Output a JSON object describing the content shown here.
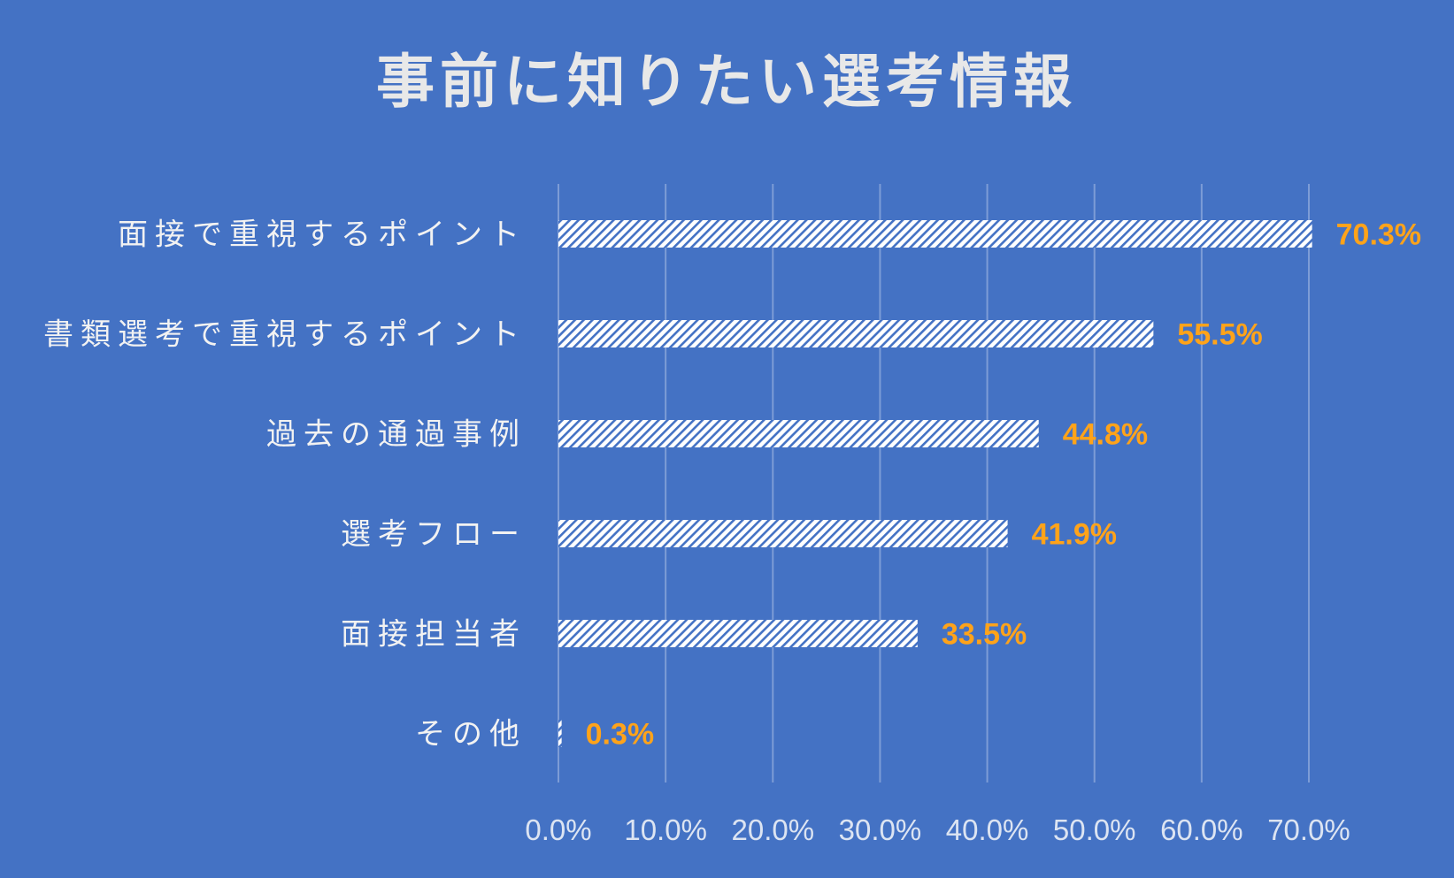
{
  "chart_data": {
    "type": "bar",
    "orientation": "horizontal",
    "title": "事前に知りたい選考情報",
    "categories": [
      "面接で重視するポイント",
      "書類選考で重視するポイント",
      "過去の通過事例",
      "選考フロー",
      "面接担当者",
      "その他"
    ],
    "values": [
      70.3,
      55.5,
      44.8,
      41.9,
      33.5,
      0.3
    ],
    "data_labels": [
      "70.3%",
      "55.5%",
      "44.8%",
      "41.9%",
      "33.5%",
      "0.3%"
    ],
    "xlim": [
      0,
      70
    ],
    "xticks": [
      0,
      10,
      20,
      30,
      40,
      50,
      60,
      70
    ],
    "xtick_labels": [
      "0.0%",
      "10.0%",
      "20.0%",
      "30.0%",
      "40.0%",
      "50.0%",
      "60.0%",
      "70.0%"
    ],
    "grid": true,
    "legend": "none",
    "bar_fill": "diagonal-hatch",
    "colors": {
      "background": "#4472C4",
      "bar_hatch": "#FFFFFF",
      "data_label": "#FFA31A",
      "gridline": "#7D9CD6",
      "text": "#F2F2F2"
    }
  }
}
